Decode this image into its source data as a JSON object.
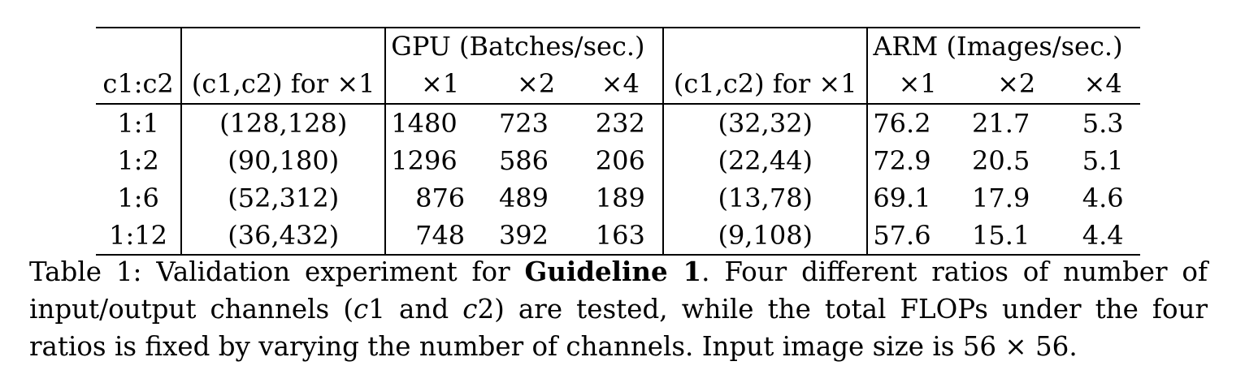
{
  "table": {
    "group_headers": {
      "gpu": "GPU (Batches/sec.)",
      "arm": "ARM (Images/sec.)"
    },
    "column_headers": {
      "ratio": "c1:c2",
      "gpu_channels": "(c1,c2) for ×1",
      "gpu_x1": "×1",
      "gpu_x2": "×2",
      "gpu_x4": "×4",
      "arm_channels": "(c1,c2) for ×1",
      "arm_x1": "×1",
      "arm_x2": "×2",
      "arm_x4": "×4"
    },
    "rows": [
      {
        "ratio": "1:1",
        "gpu_ch": "(128,128)",
        "g1": "1480",
        "g2": "723",
        "g4": "232",
        "arm_ch": "(32,32)",
        "a1": "76.2",
        "a2": "21.7",
        "a4": "5.3"
      },
      {
        "ratio": "1:2",
        "gpu_ch": "(90,180)",
        "g1": "1296",
        "g2": "586",
        "g4": "206",
        "arm_ch": "(22,44)",
        "a1": "72.9",
        "a2": "20.5",
        "a4": "5.1"
      },
      {
        "ratio": "1:6",
        "gpu_ch": "(52,312)",
        "g1": "876",
        "g2": "489",
        "g4": "189",
        "arm_ch": "(13,78)",
        "a1": "69.1",
        "a2": "17.9",
        "a4": "4.6"
      },
      {
        "ratio": "1:12",
        "gpu_ch": "(36,432)",
        "g1": "748",
        "g2": "392",
        "g4": "163",
        "arm_ch": "(9,108)",
        "a1": "57.6",
        "a2": "15.1",
        "a4": "4.4"
      }
    ]
  },
  "caption": {
    "prefix": "Table 1: Validation experiment for ",
    "bold": "Guideline 1",
    "part1": ". Four different ratios of number of input/output channels (",
    "c1": "c",
    "c1_num": "1",
    "and": " and ",
    "c2": "c",
    "c2_num": "2",
    "part2": ") are tested, while the total FLOPs under the four ratios is fixed by varying the number of channels. Input image size is 56 × 56."
  }
}
